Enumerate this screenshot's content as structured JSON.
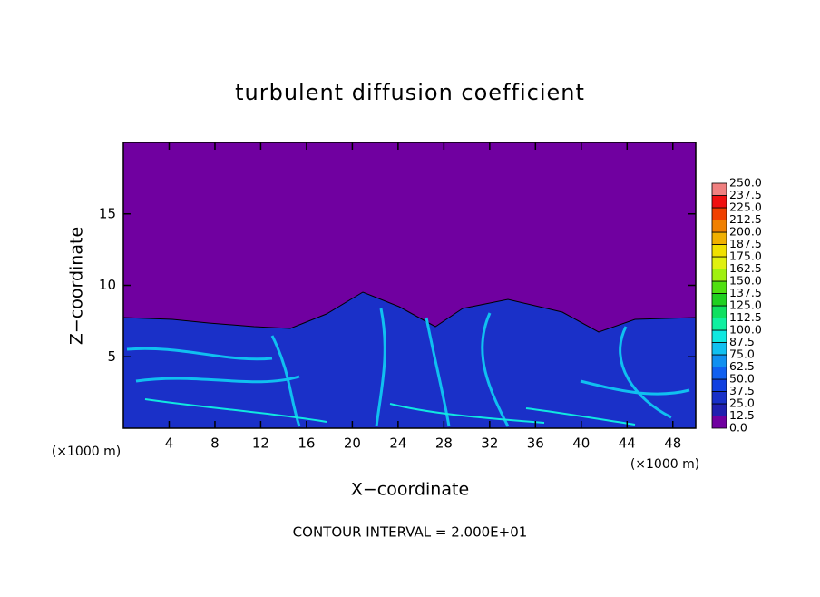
{
  "chart_data": {
    "type": "contour",
    "title": "turbulent diffusion coefficient",
    "x_label": "X−coordinate",
    "y_label": "Z−coordinate",
    "x_unit_label": "(×1000 m)",
    "y_unit_label": "(×1000 m)",
    "footer": "CONTOUR INTERVAL = 2.000E+01",
    "xlim": [
      0,
      50
    ],
    "ylim": [
      0,
      20
    ],
    "xticks": [
      4,
      8,
      12,
      16,
      20,
      24,
      28,
      32,
      36,
      40,
      44,
      48
    ],
    "yticks": [
      5,
      10,
      15
    ],
    "colorbar": {
      "levels": [
        {
          "value": 0,
          "label": "0.0"
        },
        {
          "value": 12.5,
          "label": "12.5"
        },
        {
          "value": 25,
          "label": "25.0"
        },
        {
          "value": 37.5,
          "label": "37.5"
        },
        {
          "value": 50,
          "label": "50.0"
        },
        {
          "value": 62.5,
          "label": "62.5"
        },
        {
          "value": 75,
          "label": "75.0"
        },
        {
          "value": 87.5,
          "label": "87.5"
        },
        {
          "value": 100,
          "label": "100.0"
        },
        {
          "value": 112.5,
          "label": "112.5"
        },
        {
          "value": 125,
          "label": "125.0"
        },
        {
          "value": 137.5,
          "label": "137.5"
        },
        {
          "value": 150,
          "label": "150.0"
        },
        {
          "value": 162.5,
          "label": "162.5"
        },
        {
          "value": 175,
          "label": "175.0"
        },
        {
          "value": 187.5,
          "label": "187.5"
        },
        {
          "value": 200,
          "label": "200.0"
        },
        {
          "value": 212.5,
          "label": "212.5"
        },
        {
          "value": 225,
          "label": "225.0"
        },
        {
          "value": 237.5,
          "label": "237.5"
        },
        {
          "value": 250,
          "label": "250.0"
        }
      ],
      "colors": [
        "#7000a0",
        "#2020b0",
        "#1830c8",
        "#1040e0",
        "#1060f0",
        "#1090f0",
        "#10c0f0",
        "#10e8e0",
        "#10f0a0",
        "#10e060",
        "#20d020",
        "#50e010",
        "#a0f010",
        "#e0f010",
        "#f0e000",
        "#f0b000",
        "#f08000",
        "#f04000",
        "#f01010",
        "#f08080"
      ]
    }
  }
}
